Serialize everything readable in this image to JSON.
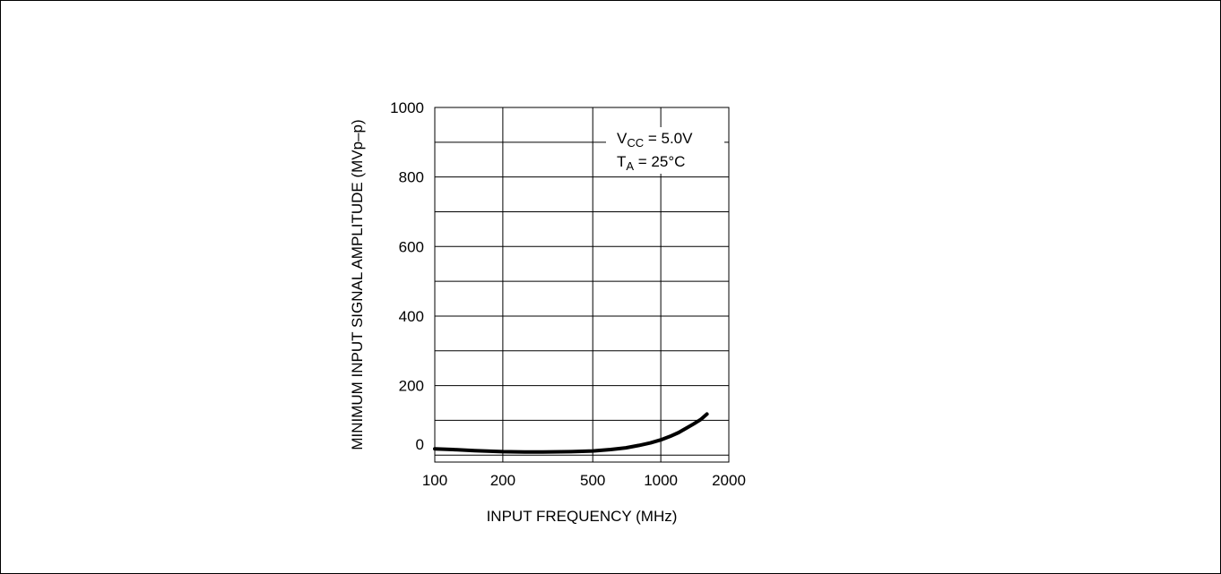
{
  "chart_data": {
    "type": "line",
    "title": "",
    "xlabel": "INPUT FREQUENCY (MHz)",
    "ylabel": "MINIMUM INPUT SIGNAL AMPLITUDE (MVp–p)",
    "x_scale": "log",
    "xlim": [
      100,
      2000
    ],
    "ylim": [
      -20,
      1000
    ],
    "x_ticks": [
      100,
      200,
      500,
      1000,
      2000
    ],
    "x_tick_labels": [
      "100",
      "200",
      "500",
      "1000",
      "2000"
    ],
    "y_ticks": [
      0,
      200,
      400,
      600,
      800,
      1000
    ],
    "y_tick_labels": [
      "0",
      "200",
      "400",
      "600",
      "800",
      "1000"
    ],
    "grid": true,
    "annotation": {
      "line1": {
        "main": "V",
        "sub": "CC",
        "rest": " = 5.0V"
      },
      "line2": {
        "main": "T",
        "sub": "A",
        "rest": " = 25°C"
      }
    },
    "series": [
      {
        "x": [
          100,
          120,
          150,
          200,
          250,
          300,
          400,
          500,
          600,
          700,
          800,
          900,
          1000,
          1100,
          1200,
          1300,
          1400,
          1500,
          1600
        ],
        "y": [
          18,
          16,
          13,
          10,
          9,
          9,
          10,
          12,
          16,
          21,
          28,
          35,
          44,
          54,
          65,
          78,
          90,
          102,
          118
        ]
      }
    ]
  }
}
